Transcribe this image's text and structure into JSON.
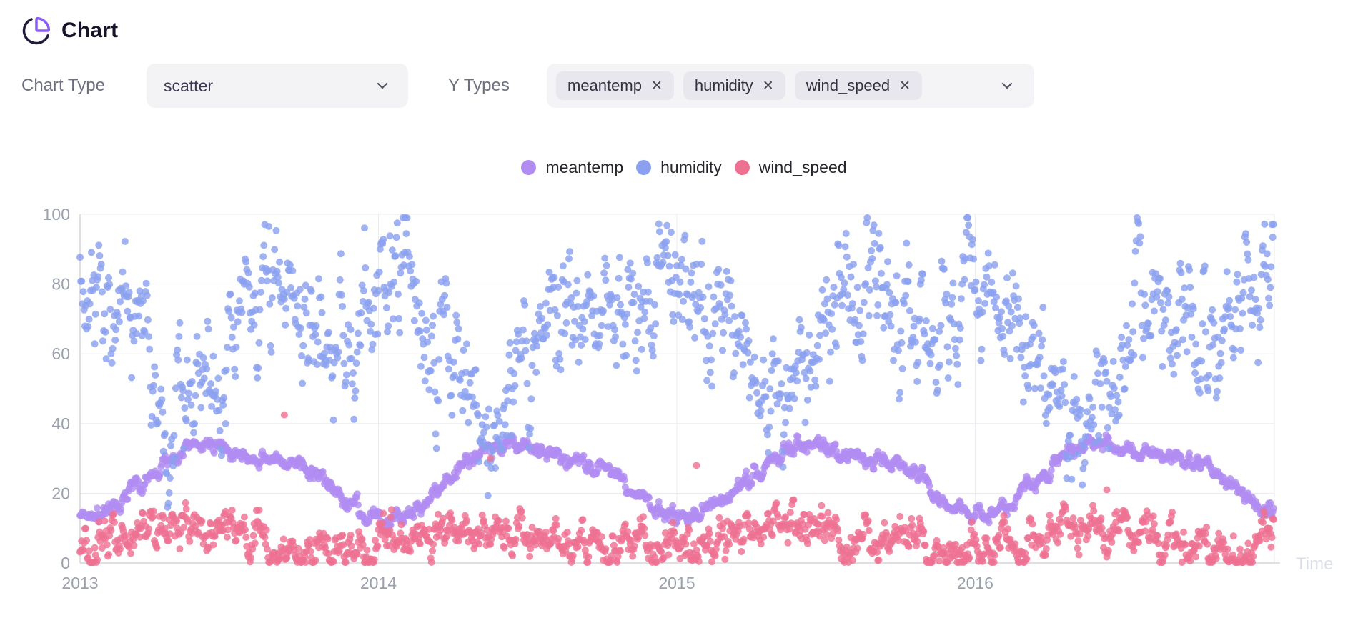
{
  "header": {
    "title": "Chart",
    "icon": "pie-chart-icon"
  },
  "controls": {
    "chart_type": {
      "label": "Chart Type",
      "value": "scatter"
    },
    "y_types": {
      "label": "Y Types",
      "tags": [
        "meantemp",
        "humidity",
        "wind_speed"
      ]
    }
  },
  "colors": {
    "accent": "#8b5cf6",
    "icon_dark": "#221c3c",
    "grid": "#ececf0",
    "axis": "#d6d6dc",
    "tick_label": "#9aa0ac",
    "axis_name": "#dcdfe7",
    "meantemp": "#b18cf1",
    "humidity": "#8ba1ef",
    "wind_speed": "#ee7192"
  },
  "chart_data": {
    "type": "scatter",
    "title": "",
    "xlabel": "Time",
    "ylabel": "",
    "x_axis": {
      "type": "time",
      "range": [
        "2013-01-01",
        "2017-01-01"
      ],
      "tick_labels": [
        "2013",
        "2014",
        "2015",
        "2016"
      ]
    },
    "y_axis": {
      "range": [
        0,
        100
      ],
      "ticks": [
        0,
        20,
        40,
        60,
        80,
        100
      ]
    },
    "grid": true,
    "legend_position": "top-center",
    "sampling": "daily",
    "point_radius": 5,
    "point_opacity": 0.82,
    "noise_persistence": 0.72,
    "series": [
      {
        "name": "meantemp",
        "color": "#b18cf1",
        "monthly_means": [
          12.5,
          16.5,
          22,
          28,
          33.5,
          34,
          31,
          30,
          29.5,
          25.5,
          19.5,
          14,
          12,
          15.5,
          21.5,
          28.5,
          33,
          34.5,
          31.5,
          30,
          29,
          26,
          19.5,
          14,
          13,
          16.5,
          21.5,
          27.5,
          33,
          34,
          31,
          30.5,
          29.5,
          26.5,
          20,
          15,
          13.5,
          17.5,
          23.5,
          30,
          34.5,
          35,
          31.5,
          30.5,
          29.5,
          27,
          21,
          15.5
        ],
        "daily_noise_sd": 1.3,
        "clamp": [
          6,
          39
        ]
      },
      {
        "name": "humidity",
        "color": "#8ba1ef",
        "monthly_means": [
          82,
          72,
          62,
          48,
          42,
          50,
          72,
          80,
          75,
          63,
          70,
          80,
          80,
          74,
          62,
          46,
          40,
          45,
          68,
          80,
          74,
          64,
          68,
          79,
          82,
          73,
          64,
          50,
          44,
          52,
          74,
          79,
          76,
          65,
          69,
          80,
          81,
          70,
          58,
          42,
          40,
          48,
          72,
          80,
          74,
          62,
          68,
          82
        ],
        "daily_noise_sd": 10,
        "clamp": [
          16,
          99
        ]
      },
      {
        "name": "wind_speed",
        "color": "#ee7192",
        "monthly_means": [
          5.5,
          7,
          8.5,
          9,
          10,
          10,
          8,
          6.5,
          6,
          4.5,
          4,
          4.5,
          6,
          7.5,
          8,
          9,
          9.5,
          10,
          8.5,
          7,
          6,
          4.5,
          4,
          5,
          6,
          7,
          8,
          9,
          10,
          9.5,
          8,
          7,
          6.5,
          5,
          4,
          5,
          5.5,
          7,
          8,
          9.5,
          10,
          9.5,
          8,
          7,
          6,
          4.5,
          4.5,
          5.5
        ],
        "daily_noise_sd": 3.4,
        "clamp": [
          0.2,
          22
        ],
        "outliers": [
          [
            "2013-09-08",
            42.5
          ],
          [
            "2014-05-18",
            30
          ],
          [
            "2015-01-25",
            28
          ],
          [
            "2016-06-10",
            21
          ]
        ]
      }
    ]
  }
}
